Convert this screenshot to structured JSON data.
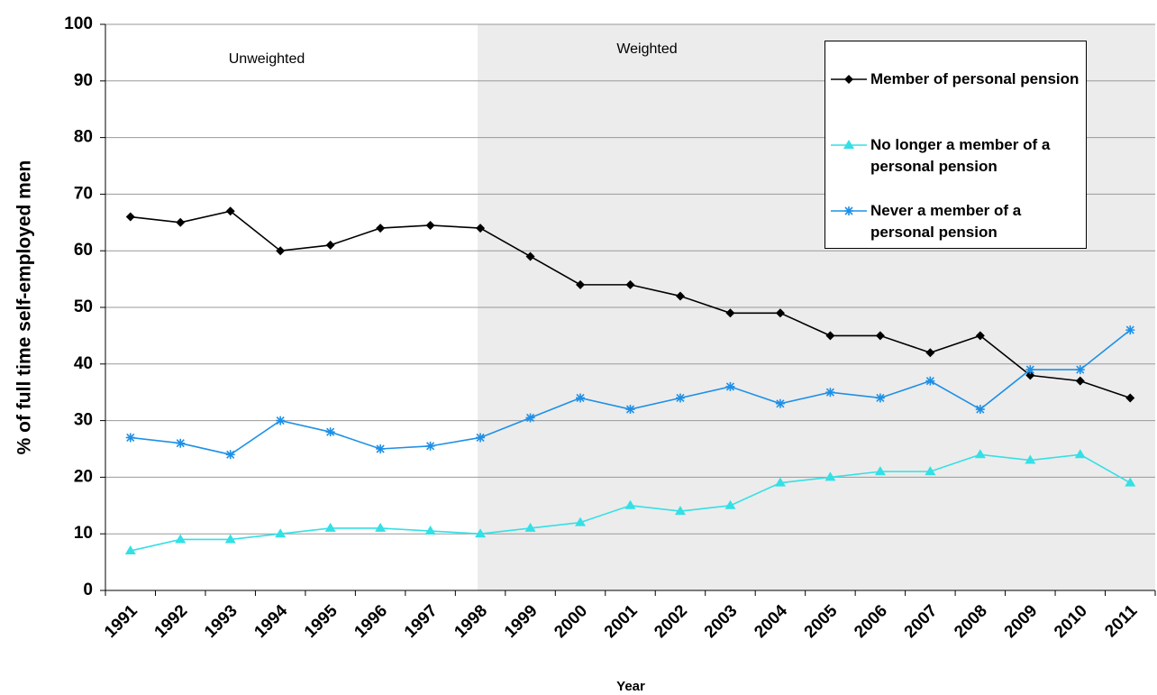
{
  "chart_data": {
    "type": "line",
    "ylabel": "% of full time self-employed men",
    "xlabel": "Year",
    "annotations": [
      "Unweighted",
      "Weighted"
    ],
    "categories": [
      "1991",
      "1992",
      "1993",
      "1994",
      "1995",
      "1996",
      "1997",
      "1998",
      "1999",
      "2000",
      "2001",
      "2002",
      "2003",
      "2004",
      "2005",
      "2006",
      "2007",
      "2008",
      "2009",
      "2010",
      "2011"
    ],
    "series": [
      {
        "name": "Member of personal pension",
        "color": "#000000",
        "marker": "diamond",
        "values": [
          66,
          65,
          67,
          60,
          61,
          64,
          64.5,
          64,
          59,
          54,
          54,
          52,
          49,
          49,
          45,
          45,
          42,
          45,
          38,
          37,
          34
        ]
      },
      {
        "name": "No longer a member of a personal pension",
        "color": "#33e0e6",
        "marker": "triangle",
        "values": [
          7,
          9,
          9,
          10,
          11,
          11,
          10.5,
          10,
          11,
          12,
          15,
          14,
          15,
          19,
          20,
          21,
          21,
          24,
          23,
          24,
          19
        ]
      },
      {
        "name": "Never a member of a personal pension",
        "color": "#1e90e6",
        "marker": "asterisk",
        "values": [
          27,
          26,
          24,
          30,
          28,
          25,
          25.5,
          27,
          30.5,
          34,
          32,
          34,
          36,
          33,
          35,
          34,
          37,
          32,
          39,
          39,
          46
        ]
      }
    ],
    "ylim": [
      0,
      100
    ],
    "yticks": [
      0,
      10,
      20,
      30,
      40,
      50,
      60,
      70,
      80,
      90,
      100
    ],
    "grid": true
  }
}
